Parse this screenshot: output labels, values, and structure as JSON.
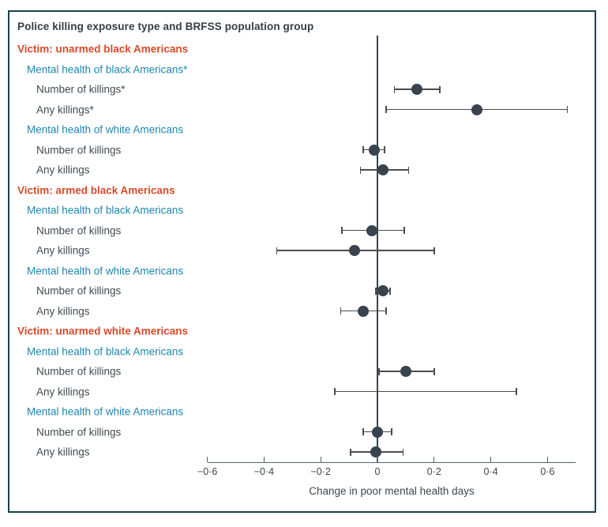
{
  "figure": {
    "title": "Police killing exposure type and BRFSS population group",
    "xlabel": "Change in poor mental health days"
  },
  "colors": {
    "victim_heading": "#d84a2b",
    "population_heading": "#1f86ae",
    "body_text": "#3f4a53",
    "marker": "#39434e",
    "border": "#17434f"
  },
  "chart_data": {
    "type": "forest",
    "title": "Police killing exposure type and BRFSS population group",
    "xlabel": "Change in poor mental health days",
    "xlim": [
      -0.6,
      0.7
    ],
    "xticks": [
      -0.6,
      -0.4,
      -0.2,
      0,
      0.2,
      0.4,
      0.6
    ],
    "xtick_labels": [
      "−0·6",
      "−0·4",
      "−0·2",
      "0",
      "0·2",
      "0·4",
      "0·6"
    ],
    "reference_line": 0,
    "grid": false,
    "legend": false,
    "groups": [
      {
        "victim": "Victim: unarmed black Americans",
        "populations": [
          {
            "label": "Mental health of black Americans*",
            "rows": [
              {
                "label": "Number of killings*",
                "estimate": 0.14,
                "ci_low": 0.06,
                "ci_high": 0.22
              },
              {
                "label": "Any killings*",
                "estimate": 0.35,
                "ci_low": 0.03,
                "ci_high": 0.67
              }
            ]
          },
          {
            "label": "Mental health of white Americans",
            "rows": [
              {
                "label": "Number of killings",
                "estimate": -0.01,
                "ci_low": -0.05,
                "ci_high": 0.025
              },
              {
                "label": "Any killings",
                "estimate": 0.02,
                "ci_low": -0.06,
                "ci_high": 0.11
              }
            ]
          }
        ]
      },
      {
        "victim": "Victim: armed black Americans",
        "populations": [
          {
            "label": "Mental health of black Americans",
            "rows": [
              {
                "label": "Number of killings",
                "estimate": -0.02,
                "ci_low": -0.125,
                "ci_high": 0.095
              },
              {
                "label": "Any killings",
                "estimate": -0.08,
                "ci_low": -0.355,
                "ci_high": 0.2
              }
            ]
          },
          {
            "label": "Mental health of white Americans",
            "rows": [
              {
                "label": "Number of killings",
                "estimate": 0.02,
                "ci_low": -0.005,
                "ci_high": 0.045
              },
              {
                "label": "Any killings",
                "estimate": -0.05,
                "ci_low": -0.13,
                "ci_high": 0.03
              }
            ]
          }
        ]
      },
      {
        "victim": "Victim: unarmed white Americans",
        "populations": [
          {
            "label": "Mental health of black Americans",
            "rows": [
              {
                "label": "Number of killings",
                "estimate": 0.1,
                "ci_low": 0.005,
                "ci_high": 0.2
              },
              {
                "label": "Any killings",
                "estimate": null,
                "ci_low": -0.15,
                "ci_high": 0.49
              }
            ]
          },
          {
            "label": "Mental health of white Americans",
            "rows": [
              {
                "label": "Number of killings",
                "estimate": 0.0,
                "ci_low": -0.05,
                "ci_high": 0.05
              },
              {
                "label": "Any killings",
                "estimate": -0.005,
                "ci_low": -0.095,
                "ci_high": 0.09
              }
            ]
          }
        ]
      }
    ]
  }
}
